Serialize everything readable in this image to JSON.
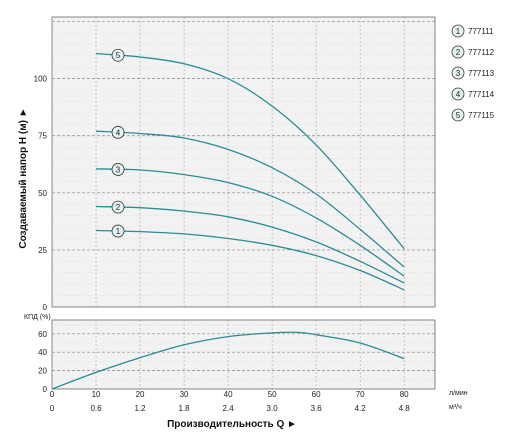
{
  "chart_data": [
    {
      "type": "line",
      "ylabel": "Создаваемый напор Н (м) ►",
      "xlim": [
        0,
        87
      ],
      "ylim": [
        0,
        127
      ],
      "y_ticks": [
        0,
        25,
        50,
        75,
        100
      ],
      "grid": true,
      "legend_position": "right",
      "series": [
        {
          "name": "777111",
          "marker": "1",
          "x": [
            10,
            20,
            30,
            40,
            50,
            60,
            70,
            80
          ],
          "y": [
            33.5,
            33,
            32,
            30,
            27,
            22.5,
            16,
            7.5
          ]
        },
        {
          "name": "777112",
          "marker": "2",
          "x": [
            10,
            20,
            30,
            40,
            50,
            60,
            70,
            80
          ],
          "y": [
            44,
            43.5,
            42,
            39.5,
            35,
            28.5,
            20,
            10.5
          ]
        },
        {
          "name": "777113",
          "marker": "3",
          "x": [
            10,
            20,
            30,
            40,
            50,
            60,
            70,
            80
          ],
          "y": [
            60.5,
            60,
            58,
            54.5,
            48.5,
            39,
            27,
            13.5
          ]
        },
        {
          "name": "777114",
          "marker": "4",
          "x": [
            10,
            20,
            30,
            40,
            50,
            60,
            70,
            80
          ],
          "y": [
            77,
            76,
            74,
            69,
            61,
            49.5,
            34,
            17.5
          ]
        },
        {
          "name": "777115",
          "marker": "5",
          "x": [
            10,
            20,
            30,
            40,
            50,
            60,
            70,
            80
          ],
          "y": [
            111,
            109.5,
            106.5,
            100,
            88,
            71,
            49,
            25.5
          ]
        }
      ]
    },
    {
      "type": "line",
      "ylabel": "КПД (%)",
      "xlabel": "Производительность Q ►",
      "xlim": [
        0,
        87
      ],
      "ylim": [
        0,
        75
      ],
      "y_ticks": [
        0,
        20,
        40,
        60
      ],
      "x_ticks_lmin": [
        0,
        10,
        20,
        30,
        40,
        50,
        60,
        70,
        80
      ],
      "x_ticks_m3h": [
        "0",
        "0.6",
        "1.2",
        "1.8",
        "2.4",
        "3.0",
        "3.6",
        "4.2",
        "4.8"
      ],
      "x_unit_lmin": "л/мин",
      "x_unit_m3h": "м³/ч",
      "grid": true,
      "series": [
        {
          "x": [
            0,
            10,
            20,
            30,
            40,
            50,
            56,
            60,
            70,
            80
          ],
          "y": [
            0,
            18,
            34,
            48,
            57,
            61,
            61.5,
            59,
            50,
            33
          ]
        }
      ]
    }
  ],
  "colors": {
    "curve": "#2a8c95",
    "marker_fill": "#e4f3f1",
    "plot_bg": "#f2f2f2",
    "grid": "#999999"
  }
}
